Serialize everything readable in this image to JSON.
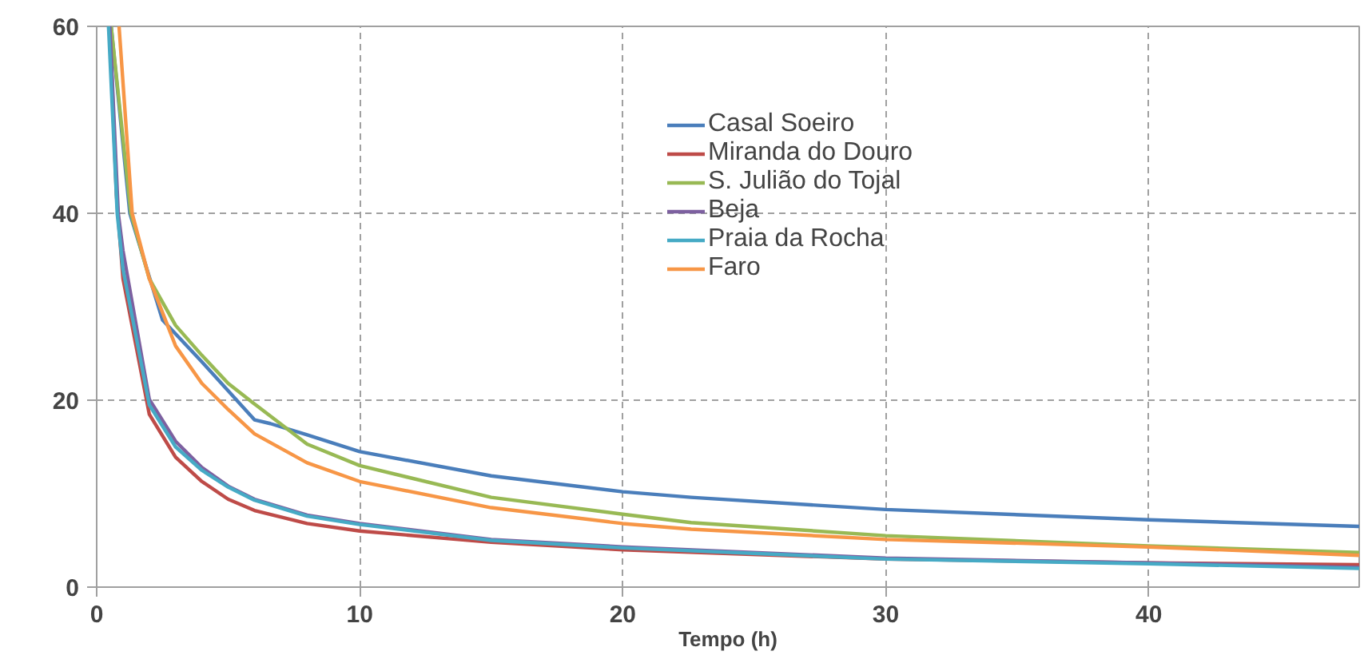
{
  "chart_data": {
    "type": "line",
    "xlabel": "Tempo (h)",
    "xlim": [
      0,
      48
    ],
    "ylim": [
      0,
      60
    ],
    "xticks": [
      0,
      10,
      20,
      30,
      40
    ],
    "yticks": [
      0,
      20,
      40,
      60
    ],
    "grid": true,
    "legend": "top",
    "marker": "none",
    "line_style": "solid",
    "series": [
      {
        "name": "Casal Soeiro",
        "color": "#4a7ebb",
        "x": [
          0.55,
          1.26,
          2.5,
          4,
          6,
          6.6,
          8,
          10,
          15,
          20,
          22.6,
          30,
          40,
          48
        ],
        "values": [
          60,
          40,
          28.6,
          24.1,
          17.9,
          17.5,
          16.3,
          14.5,
          11.9,
          10.2,
          9.6,
          8.3,
          7.2,
          6.5
        ]
      },
      {
        "name": "Miranda do Douro",
        "color": "#be4b48",
        "x": [
          0.5,
          0.75,
          1,
          2,
          3,
          4,
          5,
          6,
          8,
          10,
          15,
          20,
          30,
          40,
          48
        ],
        "values": [
          60,
          42,
          33,
          18.5,
          13.9,
          11.3,
          9.4,
          8.2,
          6.8,
          6.0,
          4.8,
          4.0,
          3.0,
          2.6,
          2.4
        ]
      },
      {
        "name": "S. Julião do Tojal",
        "color": "#98b954",
        "x": [
          0.55,
          1.3,
          2,
          3,
          4,
          5,
          6,
          8,
          10,
          15,
          20,
          22.6,
          30,
          40,
          48
        ],
        "values": [
          60,
          40,
          33,
          28,
          24.8,
          21.8,
          19.6,
          15.3,
          13,
          9.6,
          7.8,
          6.9,
          5.5,
          4.4,
          3.7
        ]
      },
      {
        "name": "Beja",
        "color": "#7d60a0",
        "x": [
          0.5,
          0.82,
          1,
          2,
          3,
          4,
          5,
          6,
          8,
          10,
          15,
          20,
          30,
          40,
          48
        ],
        "values": [
          60,
          40,
          36,
          20.1,
          15.6,
          12.8,
          10.8,
          9.4,
          7.7,
          6.8,
          5.1,
          4.3,
          3.1,
          2.6,
          2.1
        ]
      },
      {
        "name": "Praia da Rocha",
        "color": "#46aac5",
        "x": [
          0.45,
          0.78,
          1,
          2,
          3,
          4,
          5,
          6,
          8,
          10,
          15,
          20,
          30,
          40,
          48
        ],
        "values": [
          60,
          40,
          34,
          19.5,
          15,
          12.5,
          10.7,
          9.3,
          7.6,
          6.7,
          5.0,
          4.2,
          3.0,
          2.5,
          2.0
        ]
      },
      {
        "name": "Faro",
        "color": "#f79646",
        "x": [
          0.85,
          1.35,
          2,
          3,
          4,
          5,
          6,
          8,
          10,
          15,
          20,
          22.6,
          30,
          40,
          48
        ],
        "values": [
          60,
          40,
          33,
          25.8,
          21.8,
          19,
          16.4,
          13.3,
          11.3,
          8.5,
          6.8,
          6.2,
          5.1,
          4.3,
          3.4
        ]
      }
    ]
  }
}
